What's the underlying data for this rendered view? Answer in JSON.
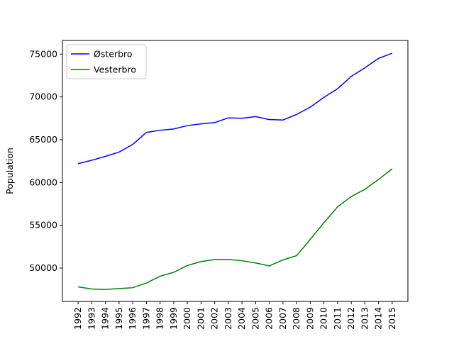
{
  "chart_data": {
    "type": "line",
    "y_label": "Population",
    "categories": [
      "1992",
      "1993",
      "1994",
      "1995",
      "1996",
      "1997",
      "1998",
      "1999",
      "2000",
      "2001",
      "2002",
      "2003",
      "2004",
      "2005",
      "2006",
      "2007",
      "2008",
      "2009",
      "2010",
      "2011",
      "2012",
      "2013",
      "2014",
      "2015"
    ],
    "series": [
      {
        "name": "Østerbro",
        "color": "#0000ff",
        "values": [
          62200,
          62600,
          63050,
          63550,
          64450,
          65850,
          66100,
          66250,
          66650,
          66850,
          67000,
          67550,
          67500,
          67700,
          67350,
          67300,
          67950,
          68800,
          69950,
          70950,
          72400,
          73400,
          74500,
          75100
        ]
      },
      {
        "name": "Vesterbro",
        "color": "#008000",
        "values": [
          47800,
          47550,
          47500,
          47600,
          47700,
          48250,
          49050,
          49500,
          50300,
          50750,
          51000,
          51000,
          50850,
          50600,
          50250,
          50950,
          51450,
          53350,
          55300,
          57150,
          58350,
          59200,
          60350,
          61600
        ]
      }
    ],
    "ylim": [
      46100,
      76600
    ],
    "yticks": [
      50000,
      55000,
      60000,
      65000,
      70000,
      75000
    ],
    "legend": "upper left"
  }
}
